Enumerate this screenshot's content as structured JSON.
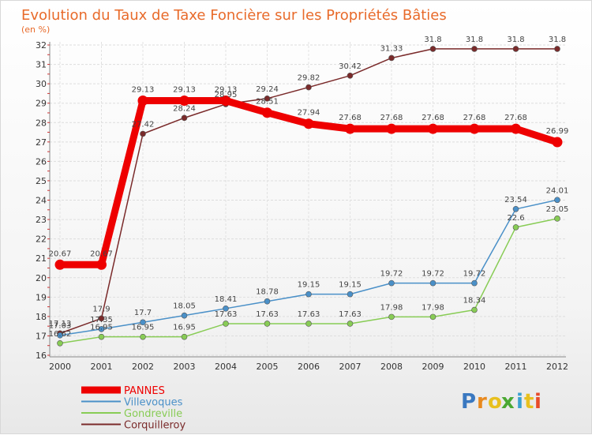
{
  "chart_data": {
    "type": "line",
    "title": "Evolution du Taux de Taxe Foncière sur les Propriétés Bâties",
    "subtitle": "(en %)",
    "x": [
      "2000",
      "2001",
      "2002",
      "2003",
      "2004",
      "2005",
      "2006",
      "2007",
      "2008",
      "2009",
      "2010",
      "2011",
      "2012"
    ],
    "y_ticks": [
      "16",
      "17",
      "18",
      "19",
      "20",
      "21",
      "22",
      "23",
      "24",
      "25",
      "26",
      "27",
      "28",
      "29",
      "30",
      "31",
      "32"
    ],
    "ylim": [
      16,
      32
    ],
    "grid": true,
    "legend_position": "bottom-left",
    "series": [
      {
        "name": "PANNES",
        "color": "#ee0000",
        "values": [
          20.67,
          20.67,
          29.13,
          29.13,
          29.13,
          28.51,
          27.94,
          27.68,
          27.68,
          27.68,
          27.68,
          27.68,
          26.99
        ],
        "labels": [
          "20.67",
          "20.67",
          "29.13",
          "29.13",
          "29.13",
          "28.51",
          "27.94",
          "27.68",
          "27.68",
          "27.68",
          "27.68",
          "27.68",
          "26.99"
        ]
      },
      {
        "name": "Villevoques",
        "color": "#4a90c8",
        "values": [
          17.03,
          17.35,
          17.7,
          18.05,
          18.41,
          18.78,
          19.15,
          19.15,
          19.72,
          19.72,
          19.72,
          23.54,
          24.01
        ],
        "labels": [
          "17.03",
          "17.35",
          "17.7",
          "18.05",
          "18.41",
          "18.78",
          "19.15",
          "19.15",
          "19.72",
          "19.72",
          "19.72",
          "23.54",
          "24.01"
        ]
      },
      {
        "name": "Gondreville",
        "color": "#88cc55",
        "values": [
          16.62,
          16.95,
          16.95,
          16.95,
          17.63,
          17.63,
          17.63,
          17.63,
          17.98,
          17.98,
          18.34,
          22.6,
          23.05
        ],
        "labels": [
          "16.62",
          "16.95",
          "16.95",
          "16.95",
          "17.63",
          "17.63",
          "17.63",
          "17.63",
          "17.98",
          "17.98",
          "18.34",
          "22.6",
          "23.05"
        ]
      },
      {
        "name": "Corquilleroy",
        "color": "#7a2a2a",
        "values": [
          17.13,
          17.9,
          27.42,
          28.24,
          28.95,
          29.24,
          29.82,
          30.42,
          31.33,
          31.8,
          31.8,
          31.8,
          31.8
        ],
        "labels": [
          "17.13",
          "17.9",
          "27.42",
          "28.24",
          "28.95",
          "29.24",
          "29.82",
          "30.42",
          "31.33",
          "31.8",
          "31.8",
          "31.8",
          "31.8"
        ]
      }
    ]
  },
  "logo": {
    "letters": [
      "P",
      "r",
      "o",
      "x",
      "i",
      "t",
      "i"
    ],
    "colors": [
      "#3a78c0",
      "#e8891e",
      "#e8c01e",
      "#4aa832",
      "#3aa0d0",
      "#e8c01e",
      "#e84a2a"
    ]
  }
}
